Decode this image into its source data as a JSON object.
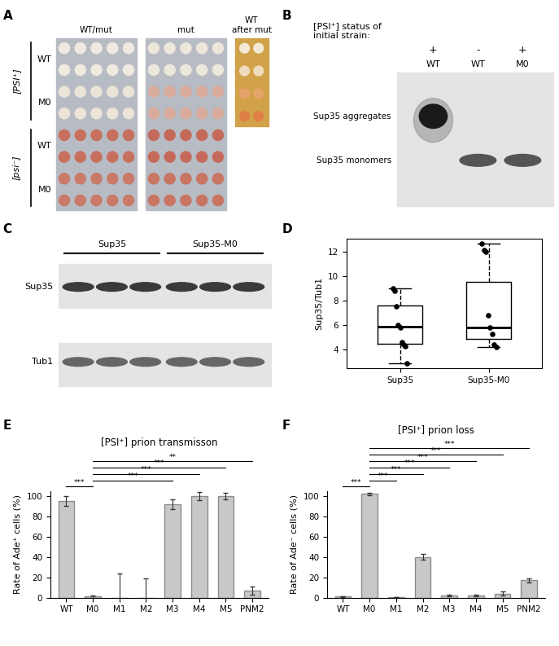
{
  "panel_letters": [
    "A",
    "B",
    "C",
    "D",
    "E",
    "F"
  ],
  "panel_A": {
    "columns": [
      "WT/mut",
      "mut",
      "WT\nafter mut"
    ],
    "groups": [
      {
        "label": "[PSI⁺]",
        "rows": [
          "WT",
          "M0"
        ]
      },
      {
        "label": "[psi⁻]",
        "rows": [
          "WT",
          "M0"
        ]
      }
    ]
  },
  "panel_B": {
    "header": "[PSI⁺] status of\ninitial strain:",
    "lanes": [
      {
        "status": "+",
        "strain": "WT"
      },
      {
        "status": "-",
        "strain": "WT"
      },
      {
        "status": "+",
        "strain": "M0"
      }
    ],
    "bands": [
      "Sup35 aggregates",
      "Sup35 monomers"
    ]
  },
  "panel_C": {
    "groups": [
      "Sup35",
      "Sup35-M0"
    ],
    "rows": [
      "Sup35",
      "Tub1"
    ]
  },
  "chart_data": [
    {
      "type": "box",
      "categories": [
        "Sup35",
        "Sup35-M0"
      ],
      "y_label": "Sup35/Tub1",
      "ylim": [
        2.5,
        13
      ],
      "yticks": [
        4,
        6,
        8,
        10,
        12
      ],
      "boxes": [
        {
          "whislo": 2.9,
          "q1": 4.5,
          "med": 5.9,
          "q3": 7.6,
          "whishi": 9.0
        },
        {
          "whislo": 4.2,
          "q1": 4.9,
          "med": 5.8,
          "q3": 9.5,
          "whishi": 12.6
        }
      ],
      "points": [
        [
          9.0,
          8.8,
          7.5,
          6.0,
          5.8,
          4.6,
          4.4,
          4.3,
          2.9
        ],
        [
          12.6,
          12.1,
          12.0,
          6.8,
          5.8,
          5.3,
          4.4,
          4.2
        ]
      ]
    },
    {
      "type": "bar",
      "title": "[PSI⁺] prion transmisson",
      "y_label": "Rate of Ade⁺ cells (%)",
      "categories": [
        "WT",
        "M0",
        "M1",
        "M2",
        "M3",
        "M4",
        "M5",
        "PNM2"
      ],
      "values": [
        95,
        1,
        0,
        0,
        92,
        100,
        100,
        7
      ],
      "errors": [
        5,
        1,
        24,
        19,
        5,
        4,
        3,
        4
      ],
      "color": "#c8c8c8",
      "ylim": [
        0,
        105
      ],
      "yticks": [
        0,
        20,
        40,
        60,
        80,
        100
      ],
      "significance": [
        {
          "from": "WT",
          "to": "M0",
          "label": "***"
        },
        {
          "from": "M0",
          "to": "M3",
          "label": "***"
        },
        {
          "from": "M0",
          "to": "M4",
          "label": "***"
        },
        {
          "from": "M0",
          "to": "M5",
          "label": "***"
        },
        {
          "from": "M0",
          "to": "PNM2",
          "label": "**"
        }
      ]
    },
    {
      "type": "bar",
      "title": "[PSI⁺] prion loss",
      "y_label": "Rate of Ade⁻ cells (%)",
      "categories": [
        "WT",
        "M0",
        "M1",
        "M2",
        "M3",
        "M4",
        "M5",
        "PNM2"
      ],
      "values": [
        1,
        102,
        0.5,
        40,
        2,
        2,
        4,
        17
      ],
      "errors": [
        0.5,
        1,
        0.3,
        3,
        1,
        1,
        2,
        2
      ],
      "color": "#c8c8c8",
      "ylim": [
        0,
        105
      ],
      "yticks": [
        0,
        20,
        40,
        60,
        80,
        100
      ],
      "significance": [
        {
          "from": "WT",
          "to": "M0",
          "label": "***"
        },
        {
          "from": "M0",
          "to": "M1",
          "label": "***"
        },
        {
          "from": "M0",
          "to": "M2",
          "label": "***"
        },
        {
          "from": "M0",
          "to": "M3",
          "label": "***"
        },
        {
          "from": "M0",
          "to": "M4",
          "label": "***"
        },
        {
          "from": "M0",
          "to": "M5",
          "label": "***"
        },
        {
          "from": "M0",
          "to": "PNM2",
          "label": "***"
        }
      ]
    }
  ]
}
